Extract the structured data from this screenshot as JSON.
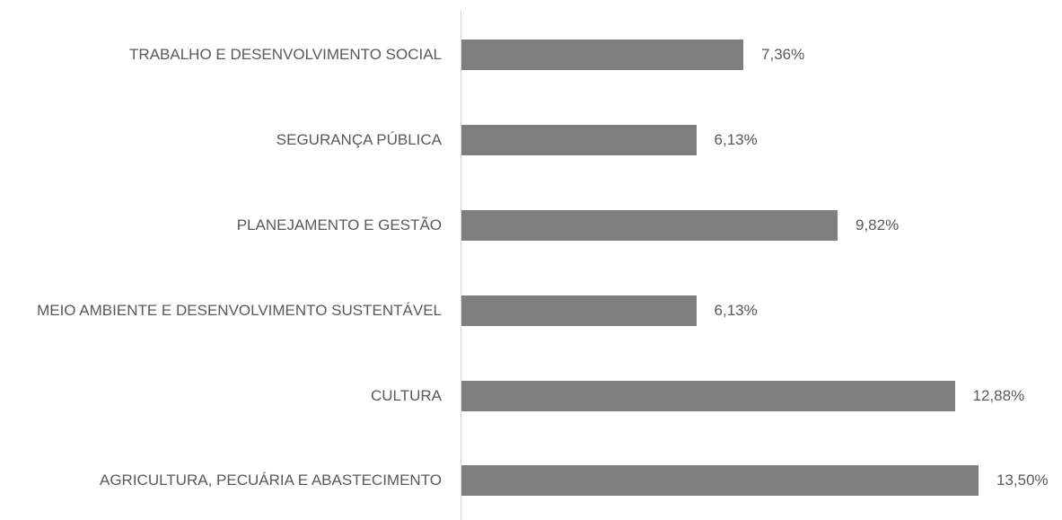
{
  "chart_data": {
    "type": "bar",
    "orientation": "horizontal",
    "categories": [
      "TRABALHO E DESENVOLVIMENTO SOCIAL",
      "SEGURANÇA PÚBLICA",
      "PLANEJAMENTO E GESTÃO",
      "MEIO AMBIENTE E DESENVOLVIMENTO SUSTENTÁVEL",
      "CULTURA",
      "AGRICULTURA, PECUÁRIA E ABASTECIMENTO"
    ],
    "values": [
      7.36,
      6.13,
      9.82,
      6.13,
      12.88,
      13.5
    ],
    "value_labels": [
      "7,36%",
      "6,13%",
      "9,82%",
      "6,13%",
      "12,88%",
      "13,50%"
    ],
    "color": "#7f7f7f"
  }
}
